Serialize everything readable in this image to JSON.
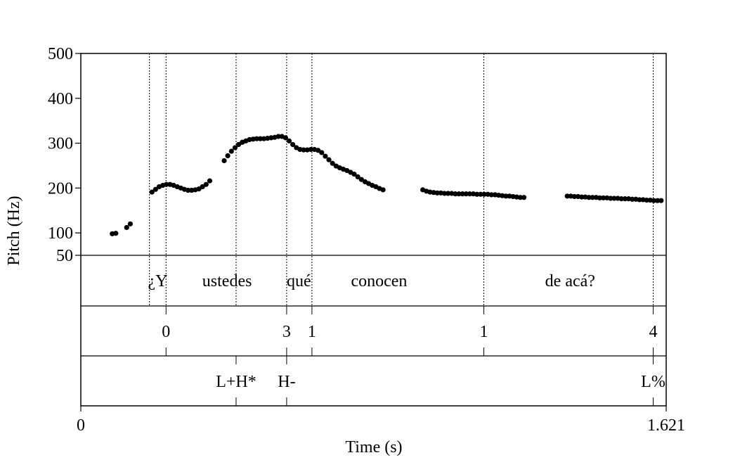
{
  "chart_data": {
    "type": "scatter",
    "xlabel": "Time (s)",
    "ylabel": "Pitch (Hz)",
    "xlim": [
      0,
      1.621
    ],
    "ylim": [
      50,
      500
    ],
    "x_ticks": [
      "0",
      "1.621"
    ],
    "y_ticks": [
      {
        "value": 500,
        "label": "500"
      },
      {
        "value": 400,
        "label": "400"
      },
      {
        "value": 300,
        "label": "300"
      },
      {
        "value": 200,
        "label": "200"
      },
      {
        "value": 100,
        "label": "100"
      },
      {
        "value": 50,
        "label": "50"
      }
    ],
    "boundaries": [
      0.19,
      0.236,
      0.43,
      0.57,
      0.64,
      1.116,
      1.585
    ],
    "pitch_points": [
      [
        0.087,
        98
      ],
      [
        0.097,
        99
      ],
      [
        0.127,
        112
      ],
      [
        0.137,
        120
      ],
      [
        0.197,
        191
      ],
      [
        0.207,
        197
      ],
      [
        0.217,
        203
      ],
      [
        0.227,
        206
      ],
      [
        0.237,
        208
      ],
      [
        0.247,
        208
      ],
      [
        0.257,
        206
      ],
      [
        0.267,
        203
      ],
      [
        0.277,
        200
      ],
      [
        0.287,
        197
      ],
      [
        0.297,
        195
      ],
      [
        0.307,
        195
      ],
      [
        0.317,
        196
      ],
      [
        0.327,
        198
      ],
      [
        0.337,
        203
      ],
      [
        0.347,
        208
      ],
      [
        0.357,
        216
      ],
      [
        0.397,
        261
      ],
      [
        0.407,
        272
      ],
      [
        0.417,
        282
      ],
      [
        0.427,
        290
      ],
      [
        0.437,
        297
      ],
      [
        0.447,
        302
      ],
      [
        0.457,
        305
      ],
      [
        0.467,
        308
      ],
      [
        0.477,
        309
      ],
      [
        0.487,
        310
      ],
      [
        0.497,
        310
      ],
      [
        0.507,
        310
      ],
      [
        0.517,
        311
      ],
      [
        0.527,
        312
      ],
      [
        0.537,
        313
      ],
      [
        0.547,
        315
      ],
      [
        0.557,
        315
      ],
      [
        0.567,
        312
      ],
      [
        0.577,
        305
      ],
      [
        0.587,
        297
      ],
      [
        0.597,
        290
      ],
      [
        0.607,
        286
      ],
      [
        0.617,
        285
      ],
      [
        0.627,
        285
      ],
      [
        0.637,
        286
      ],
      [
        0.647,
        286
      ],
      [
        0.657,
        284
      ],
      [
        0.667,
        279
      ],
      [
        0.677,
        271
      ],
      [
        0.687,
        263
      ],
      [
        0.697,
        255
      ],
      [
        0.707,
        249
      ],
      [
        0.717,
        245
      ],
      [
        0.727,
        242
      ],
      [
        0.737,
        239
      ],
      [
        0.747,
        235
      ],
      [
        0.757,
        231
      ],
      [
        0.767,
        225
      ],
      [
        0.777,
        219
      ],
      [
        0.787,
        214
      ],
      [
        0.797,
        210
      ],
      [
        0.807,
        206
      ],
      [
        0.817,
        203
      ],
      [
        0.827,
        199
      ],
      [
        0.837,
        196
      ],
      [
        0.947,
        196
      ],
      [
        0.957,
        193
      ],
      [
        0.967,
        191
      ],
      [
        0.977,
        190
      ],
      [
        0.987,
        189
      ],
      [
        0.997,
        189
      ],
      [
        1.007,
        188
      ],
      [
        1.017,
        188
      ],
      [
        1.027,
        188
      ],
      [
        1.037,
        187
      ],
      [
        1.047,
        187
      ],
      [
        1.057,
        187
      ],
      [
        1.067,
        187
      ],
      [
        1.077,
        187
      ],
      [
        1.087,
        187
      ],
      [
        1.097,
        186
      ],
      [
        1.107,
        186
      ],
      [
        1.117,
        186
      ],
      [
        1.127,
        186
      ],
      [
        1.137,
        185
      ],
      [
        1.147,
        185
      ],
      [
        1.157,
        184
      ],
      [
        1.167,
        183
      ],
      [
        1.177,
        182
      ],
      [
        1.187,
        182
      ],
      [
        1.197,
        181
      ],
      [
        1.207,
        180
      ],
      [
        1.217,
        179
      ],
      [
        1.227,
        179
      ],
      [
        1.347,
        182
      ],
      [
        1.357,
        182
      ],
      [
        1.367,
        181
      ],
      [
        1.377,
        181
      ],
      [
        1.387,
        180
      ],
      [
        1.397,
        180
      ],
      [
        1.407,
        179
      ],
      [
        1.417,
        179
      ],
      [
        1.427,
        179
      ],
      [
        1.437,
        178
      ],
      [
        1.447,
        178
      ],
      [
        1.457,
        178
      ],
      [
        1.467,
        177
      ],
      [
        1.477,
        177
      ],
      [
        1.487,
        177
      ],
      [
        1.497,
        176
      ],
      [
        1.507,
        176
      ],
      [
        1.517,
        176
      ],
      [
        1.527,
        175
      ],
      [
        1.537,
        175
      ],
      [
        1.547,
        174
      ],
      [
        1.557,
        174
      ],
      [
        1.567,
        173
      ],
      [
        1.577,
        173
      ],
      [
        1.587,
        172
      ],
      [
        1.597,
        172
      ],
      [
        1.607,
        172
      ]
    ],
    "tiers": {
      "words": [
        {
          "text": "¿Y",
          "t": 0.213
        },
        {
          "text": "ustedes",
          "t": 0.405
        },
        {
          "text": "qué",
          "t": 0.604
        },
        {
          "text": "conocen",
          "t": 0.826
        },
        {
          "text": "de acá?",
          "t": 1.355
        }
      ],
      "break_indices": [
        {
          "text": "0",
          "t": 0.236
        },
        {
          "text": "3",
          "t": 0.57
        },
        {
          "text": "1",
          "t": 0.64
        },
        {
          "text": "1",
          "t": 1.116
        },
        {
          "text": "4",
          "t": 1.585
        }
      ],
      "tones": [
        {
          "text": "L+H*",
          "t": 0.43
        },
        {
          "text": "H-",
          "t": 0.57
        },
        {
          "text": "L%",
          "t": 1.585
        }
      ]
    }
  }
}
